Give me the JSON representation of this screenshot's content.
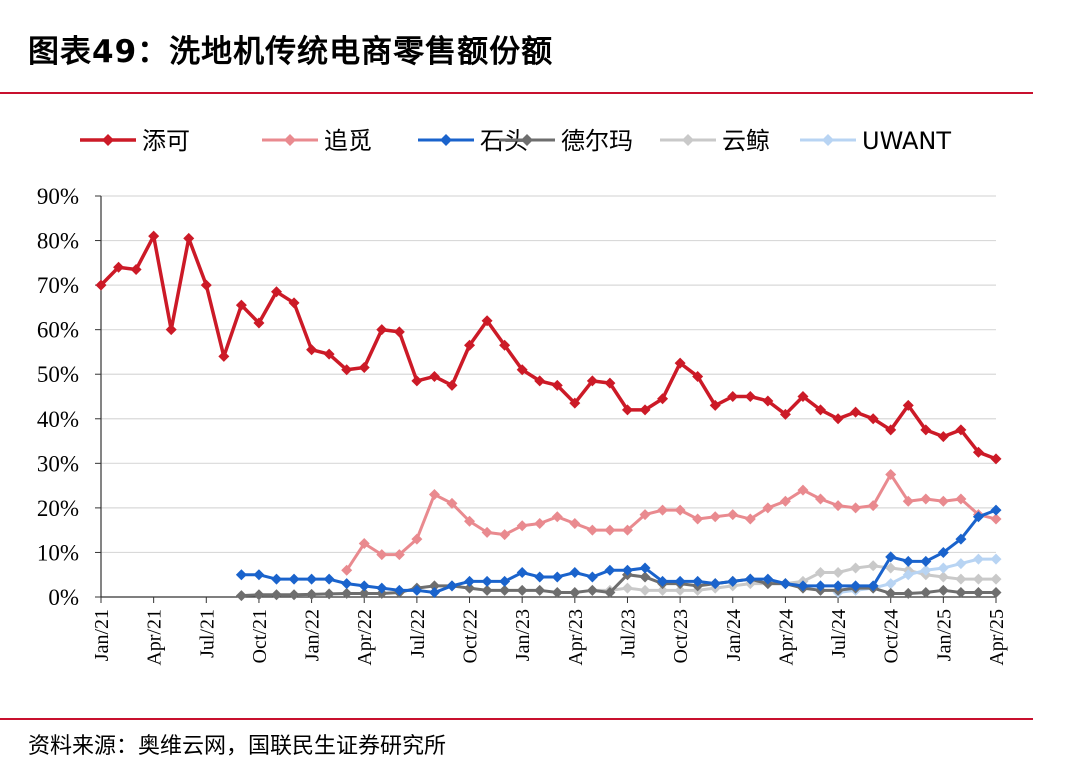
{
  "header": {
    "title": "图表49：洗地机传统电商零售额份额"
  },
  "footer": {
    "source": "资料来源：奥维云网，国联民生证券研究所"
  },
  "colors": {
    "添可": "#cc1a27",
    "追觅": "#e98a8f",
    "石头": "#1a63cc",
    "德尔玛": "#6e6e6e",
    "云鲸": "#c9c9c9",
    "UWANT": "#b8d4f3",
    "rule": "#c8102e",
    "grid": "#d9d9d9"
  },
  "chart_data": {
    "type": "line",
    "title": "",
    "xlabel": "",
    "ylabel": "",
    "ylim": [
      0,
      90
    ],
    "y_ticks": [
      "0%",
      "10%",
      "20%",
      "30%",
      "40%",
      "50%",
      "60%",
      "70%",
      "80%",
      "90%"
    ],
    "x": [
      "Jan/21",
      "Feb/21",
      "Mar/21",
      "Apr/21",
      "May/21",
      "Jun/21",
      "Jul/21",
      "Aug/21",
      "Sep/21",
      "Oct/21",
      "Nov/21",
      "Dec/21",
      "Jan/22",
      "Feb/22",
      "Mar/22",
      "Apr/22",
      "May/22",
      "Jun/22",
      "Jul/22",
      "Aug/22",
      "Sep/22",
      "Oct/22",
      "Nov/22",
      "Dec/22",
      "Jan/23",
      "Feb/23",
      "Mar/23",
      "Apr/23",
      "May/23",
      "Jun/23",
      "Jul/23",
      "Aug/23",
      "Sep/23",
      "Oct/23",
      "Nov/23",
      "Dec/23",
      "Jan/24",
      "Feb/24",
      "Mar/24",
      "Apr/24",
      "May/24",
      "Jun/24",
      "Jul/24",
      "Aug/24",
      "Sep/24",
      "Oct/24",
      "Nov/24",
      "Dec/24",
      "Jan/25",
      "Feb/25",
      "Mar/25",
      "Apr/25"
    ],
    "x_tick_labels": [
      {
        "index": 0,
        "label": "Jan/21"
      },
      {
        "index": 3,
        "label": "Apr/21"
      },
      {
        "index": 6,
        "label": "Jul/21"
      },
      {
        "index": 9,
        "label": "Oct/21"
      },
      {
        "index": 12,
        "label": "Jan/22"
      },
      {
        "index": 15,
        "label": "Apr/22"
      },
      {
        "index": 18,
        "label": "Jul/22"
      },
      {
        "index": 21,
        "label": "Oct/22"
      },
      {
        "index": 24,
        "label": "Jan/23"
      },
      {
        "index": 27,
        "label": "Apr/23"
      },
      {
        "index": 30,
        "label": "Jul/23"
      },
      {
        "index": 33,
        "label": "Oct/23"
      },
      {
        "index": 36,
        "label": "Jan/24"
      },
      {
        "index": 39,
        "label": "Apr/24"
      },
      {
        "index": 42,
        "label": "Jul/24"
      },
      {
        "index": 45,
        "label": "Oct/24"
      },
      {
        "index": 48,
        "label": "Jan/25"
      },
      {
        "index": 51,
        "label": "Apr/25"
      }
    ],
    "legend": {
      "position": "top"
    },
    "grid": true,
    "series": [
      {
        "name": "添可",
        "color": "#cc1a27",
        "width": 3.5,
        "values": [
          70,
          74,
          73.5,
          81,
          60,
          80.5,
          70,
          54,
          65.5,
          61.5,
          68.5,
          66,
          55.5,
          54.5,
          51,
          51.5,
          60,
          59.5,
          48.5,
          49.5,
          47.5,
          56.5,
          62,
          56.5,
          51,
          48.5,
          47.5,
          43.5,
          48.5,
          48,
          42,
          42,
          44.5,
          52.5,
          49.5,
          43,
          45,
          45,
          44,
          41,
          45,
          42,
          40,
          41.5,
          40,
          37.5,
          43,
          37.5,
          36,
          37.5,
          32.5,
          31
        ]
      },
      {
        "name": "追觅",
        "color": "#e98a8f",
        "width": 3,
        "values": [
          null,
          null,
          null,
          null,
          null,
          null,
          null,
          null,
          null,
          null,
          null,
          null,
          null,
          null,
          6,
          12,
          9.5,
          9.5,
          13,
          23,
          21,
          17,
          14.5,
          14,
          16,
          16.5,
          18,
          16.5,
          15,
          15,
          15,
          18.5,
          19.5,
          19.5,
          17.5,
          18,
          18.5,
          17.5,
          20,
          21.5,
          24,
          22,
          20.5,
          20,
          20.5,
          27.5,
          21.5,
          22,
          21.5,
          22,
          18.5,
          17.5
        ]
      },
      {
        "name": "石头",
        "color": "#1a63cc",
        "width": 3,
        "values": [
          null,
          null,
          null,
          null,
          null,
          null,
          null,
          null,
          5,
          5,
          4,
          4,
          4,
          4,
          3,
          2.5,
          2,
          1.5,
          1.5,
          1,
          2.5,
          3.5,
          3.5,
          3.5,
          5.5,
          4.5,
          4.5,
          5.5,
          4.5,
          6,
          6,
          6.5,
          3.5,
          3.5,
          3.5,
          3,
          3.5,
          4,
          4,
          3,
          2.5,
          2.5,
          2.5,
          2.5,
          2.5,
          9,
          8,
          8,
          10,
          13,
          18,
          19.5
        ]
      },
      {
        "name": "德尔玛",
        "color": "#6e6e6e",
        "width": 3,
        "values": [
          null,
          null,
          null,
          null,
          null,
          null,
          null,
          null,
          0.3,
          0.5,
          0.5,
          0.5,
          0.6,
          0.7,
          0.8,
          0.8,
          0.8,
          1,
          2,
          2.5,
          2.5,
          2,
          1.5,
          1.5,
          1.5,
          1.5,
          1,
          1,
          1.5,
          1,
          5,
          4.5,
          3,
          3,
          2.5,
          3,
          3.5,
          4,
          3,
          3,
          2,
          1.5,
          1.5,
          2,
          2,
          0.8,
          0.8,
          1,
          1.5,
          1,
          1,
          1
        ]
      },
      {
        "name": "云鲸",
        "color": "#c9c9c9",
        "width": 3,
        "values": [
          null,
          null,
          null,
          null,
          null,
          null,
          null,
          null,
          null,
          null,
          null,
          null,
          null,
          null,
          null,
          null,
          null,
          null,
          null,
          null,
          null,
          null,
          null,
          null,
          null,
          null,
          null,
          null,
          1.5,
          1.5,
          2,
          1.5,
          1.5,
          1.5,
          1.5,
          2,
          2.5,
          3,
          3,
          3,
          3.5,
          5.5,
          5.5,
          6.5,
          7,
          6.5,
          6,
          5,
          4.5,
          4,
          4,
          4
        ]
      },
      {
        "name": "UWANT",
        "color": "#b8d4f3",
        "width": 3,
        "values": [
          null,
          null,
          null,
          null,
          null,
          null,
          null,
          null,
          null,
          null,
          null,
          null,
          null,
          null,
          null,
          null,
          null,
          null,
          null,
          null,
          null,
          null,
          null,
          null,
          null,
          null,
          null,
          null,
          null,
          null,
          null,
          null,
          null,
          null,
          null,
          null,
          null,
          null,
          null,
          null,
          null,
          null,
          1,
          1.5,
          2,
          3,
          5,
          6,
          6.5,
          7.5,
          8.5,
          8.5
        ]
      }
    ]
  }
}
